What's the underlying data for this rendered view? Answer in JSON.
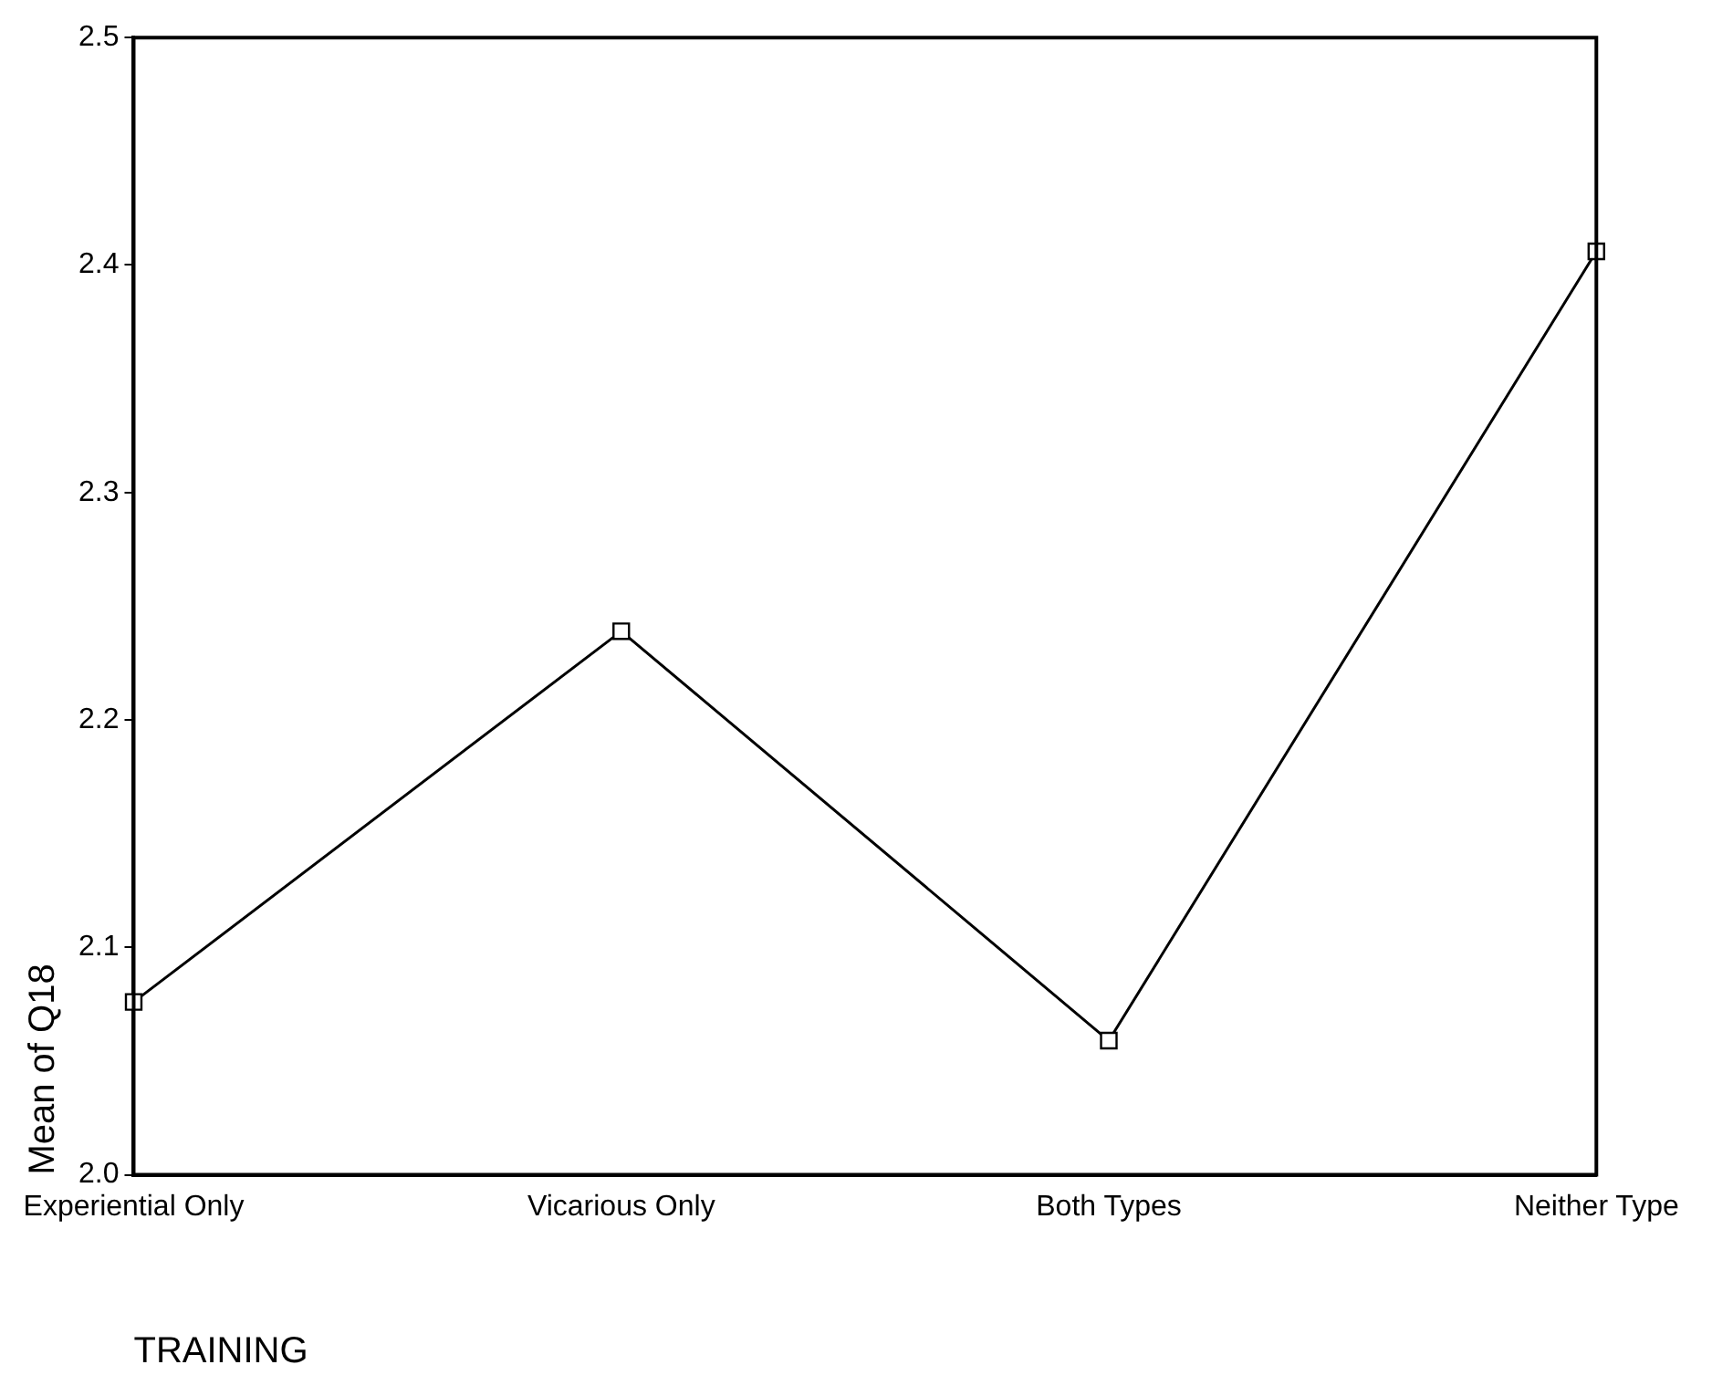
{
  "chart_data": {
    "type": "line",
    "xlabel": "TRAINING",
    "ylabel": "Mean of Q18",
    "categories": [
      "Experiential Only",
      "Vicarious Only",
      "Both Types",
      "Neither Type"
    ],
    "series": [
      {
        "color": "#000000",
        "values": [
          2.076,
          2.239,
          2.059,
          2.406
        ]
      }
    ],
    "ylim": [
      2.0,
      2.5
    ],
    "yticks": [
      {
        "value": 2.0,
        "label": "2.0"
      },
      {
        "value": 2.1,
        "label": "2.1"
      },
      {
        "value": 2.2,
        "label": "2.2"
      },
      {
        "value": 2.3,
        "label": "2.3"
      },
      {
        "value": 2.4,
        "label": "2.4"
      },
      {
        "value": 2.5,
        "label": "2.5"
      }
    ],
    "grid": false,
    "legend": false,
    "marker": "square",
    "line_style": "solid"
  }
}
